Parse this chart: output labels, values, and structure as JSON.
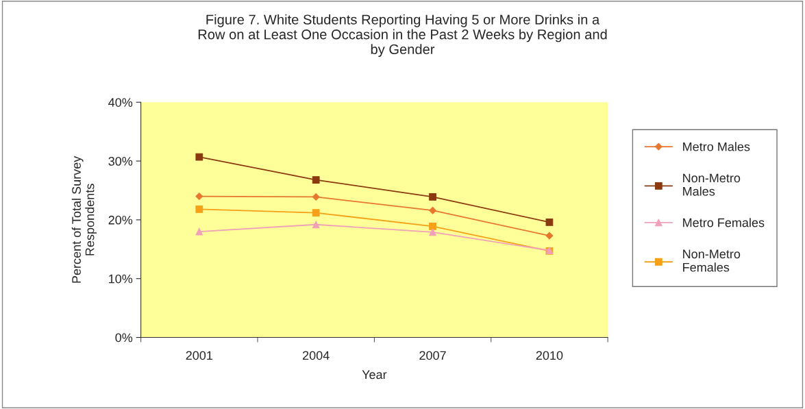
{
  "chart_data": {
    "type": "line",
    "title": "Figure 7. White Students Reporting Having 5 or More Drinks in a\nRow on at Least One Occasion in the Past 2 Weeks by Region and\nby Gender",
    "xlabel": "Year",
    "ylabel": "Percent of Total Survey\nRespondents",
    "categories": [
      "2001",
      "2004",
      "2007",
      "2010"
    ],
    "series": [
      {
        "name": "Metro Males",
        "color": "#e8772e",
        "marker": "diamond",
        "values": [
          24.0,
          23.9,
          21.6,
          17.3
        ]
      },
      {
        "name": "Non-Metro\nMales",
        "color": "#8b3a0f",
        "marker": "square",
        "values": [
          30.7,
          26.8,
          23.9,
          19.6
        ]
      },
      {
        "name": "Metro Females",
        "color": "#f0a0b8",
        "marker": "triangle",
        "values": [
          18.0,
          19.2,
          17.9,
          14.8
        ]
      },
      {
        "name": "Non-Metro\nFemales",
        "color": "#f5a016",
        "marker": "square",
        "values": [
          21.8,
          21.2,
          18.9,
          14.7
        ]
      }
    ],
    "ylim": [
      0,
      40
    ],
    "yticks": [
      {
        "value": 0,
        "label": "0%"
      },
      {
        "value": 10,
        "label": "10%"
      },
      {
        "value": 20,
        "label": "20%"
      },
      {
        "value": 30,
        "label": "30%"
      },
      {
        "value": 40,
        "label": "40%"
      }
    ],
    "grid": false,
    "legend": "right",
    "line_style": "solid"
  }
}
